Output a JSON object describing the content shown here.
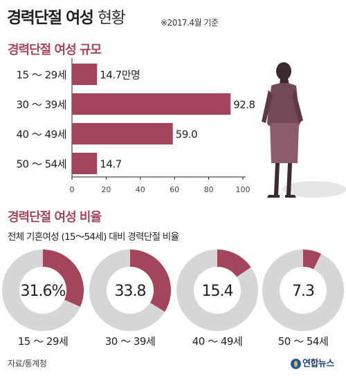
{
  "header": {
    "title": "경력단절 여성",
    "title_suffix": "현황",
    "note": "※2017.4월 기준"
  },
  "section1": {
    "title": "경력단절 여성 규모"
  },
  "section2": {
    "title": "경력단절 여성 비율",
    "description": "전체 기혼여성 (15～54세) 대비 경력단절 비율"
  },
  "chart_data": [
    {
      "type": "bar",
      "orientation": "horizontal",
      "title": "경력단절 여성 규모",
      "categories": [
        "15 ～ 29세",
        "30 ～ 39세",
        "40 ～ 49세",
        "50 ～ 54세"
      ],
      "values": [
        14.7,
        92.8,
        59.0,
        14.7
      ],
      "value_labels": [
        "14.7만명",
        "92.8",
        "59.0",
        "14.7"
      ],
      "unit": "만명",
      "xlim": [
        0,
        100
      ],
      "xticks": [
        0,
        20,
        40,
        60,
        80,
        100
      ],
      "color": "#a4465b"
    },
    {
      "type": "pie",
      "variant": "donut",
      "title": "경력단절 여성 비율",
      "categories": [
        "15 ～ 29세",
        "30 ～ 39세",
        "40 ～ 49세",
        "50 ～ 54세"
      ],
      "values": [
        31.6,
        33.8,
        15.4,
        7.3
      ],
      "value_labels": [
        "31.6%",
        "33.8",
        "15.4",
        "7.3"
      ],
      "unit": "%",
      "colors": {
        "share": "#a4465b",
        "remainder": "#d6d6d6"
      }
    }
  ],
  "footer": {
    "source": "자료/통계청",
    "logo": "연합뉴스"
  }
}
